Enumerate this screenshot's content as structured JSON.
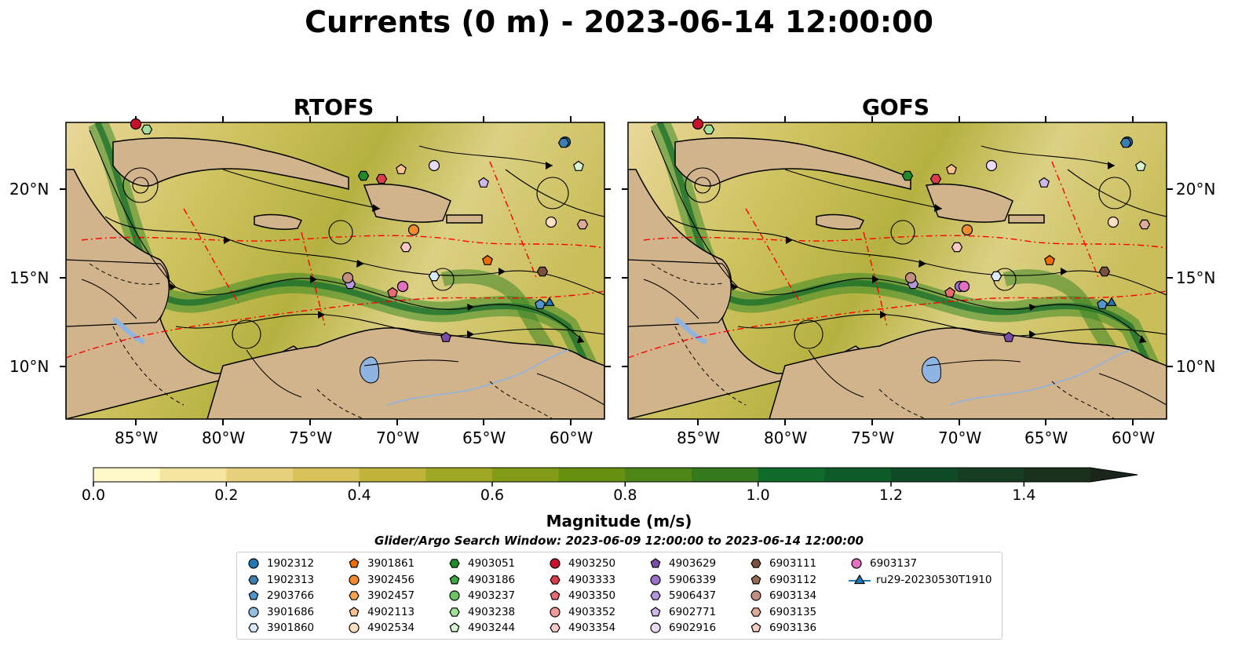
{
  "title": "Currents (0 m) - 2023-06-14 12:00:00",
  "panels": [
    {
      "title": "RTOFS"
    },
    {
      "title": "GOFS"
    }
  ],
  "lon_ticks": [
    "85°W",
    "80°W",
    "75°W",
    "70°W",
    "65°W",
    "60°W"
  ],
  "lat_ticks": [
    "20°N",
    "15°N",
    "10°N"
  ],
  "colorbar": {
    "label": "Magnitude (m/s)",
    "ticks": [
      "0.0",
      "0.2",
      "0.4",
      "0.6",
      "0.8",
      "1.0",
      "1.2",
      "1.4"
    ],
    "colors": [
      "#fff9c9",
      "#f4e6a0",
      "#e6d07c",
      "#d8c158",
      "#bfb33a",
      "#9ea825",
      "#829c17",
      "#66900f",
      "#4d8517",
      "#34791d",
      "#0e6b2a",
      "#0c5b29",
      "#104b27",
      "#173e22",
      "#1a311d",
      "#1a261b"
    ]
  },
  "search_window": "Glider/Argo Search Window: 2023-06-09 12:00:00 to 2023-06-14 12:00:00",
  "legend": [
    {
      "label": "1902312",
      "color": "#1f77b4",
      "marker": "circle"
    },
    {
      "label": "1902313",
      "color": "#3d7fb5",
      "marker": "hexagon"
    },
    {
      "label": "2903766",
      "color": "#5294cc",
      "marker": "pentagon"
    },
    {
      "label": "3901686",
      "color": "#93bde3",
      "marker": "circle"
    },
    {
      "label": "3901860",
      "color": "#d8eafa",
      "marker": "hexagon"
    },
    {
      "label": "3901861",
      "color": "#ef6c00",
      "marker": "pentagon"
    },
    {
      "label": "3902456",
      "color": "#f28a2e",
      "marker": "circle"
    },
    {
      "label": "3902457",
      "color": "#f7a450",
      "marker": "hexagon"
    },
    {
      "label": "4902113",
      "color": "#fac08f",
      "marker": "pentagon"
    },
    {
      "label": "4902534",
      "color": "#fde0c4",
      "marker": "circle"
    },
    {
      "label": "4903051",
      "color": "#1e8a2a",
      "marker": "hexagon"
    },
    {
      "label": "4903186",
      "color": "#3fa846",
      "marker": "pentagon"
    },
    {
      "label": "4903237",
      "color": "#6cc564",
      "marker": "circle"
    },
    {
      "label": "4903238",
      "color": "#a2e09a",
      "marker": "hexagon"
    },
    {
      "label": "4903244",
      "color": "#d6f5cf",
      "marker": "pentagon"
    },
    {
      "label": "4903250",
      "color": "#c8102e",
      "marker": "circle"
    },
    {
      "label": "4903333",
      "color": "#dc3c4b",
      "marker": "hexagon"
    },
    {
      "label": "4903350",
      "color": "#e96b70",
      "marker": "pentagon"
    },
    {
      "label": "4903352",
      "color": "#f29a98",
      "marker": "circle"
    },
    {
      "label": "4903354",
      "color": "#fbcac6",
      "marker": "hexagon"
    },
    {
      "label": "4903629",
      "color": "#7b4fa6",
      "marker": "pentagon"
    },
    {
      "label": "5906339",
      "color": "#9c6fcb",
      "marker": "circle"
    },
    {
      "label": "5906437",
      "color": "#b597de",
      "marker": "hexagon"
    },
    {
      "label": "6902771",
      "color": "#cdb8ee",
      "marker": "pentagon"
    },
    {
      "label": "6902916",
      "color": "#e7dcf8",
      "marker": "circle"
    },
    {
      "label": "6903111",
      "color": "#7a4f3b",
      "marker": "hexagon"
    },
    {
      "label": "6903112",
      "color": "#9b6a55",
      "marker": "pentagon"
    },
    {
      "label": "6903134",
      "color": "#c18e7f",
      "marker": "circle"
    },
    {
      "label": "6903135",
      "color": "#e0a99a",
      "marker": "hexagon"
    },
    {
      "label": "6903136",
      "color": "#f4cdbf",
      "marker": "pentagon"
    },
    {
      "label": "6903137",
      "color": "#e370c0",
      "marker": "circle"
    },
    {
      "label": "ru29-20230530T1910",
      "color": "#1f77b4",
      "marker": "triangle"
    }
  ],
  "colors": {
    "land": "#d2b48c",
    "lake": "#8eb4e3",
    "eez": "#ff0000"
  }
}
